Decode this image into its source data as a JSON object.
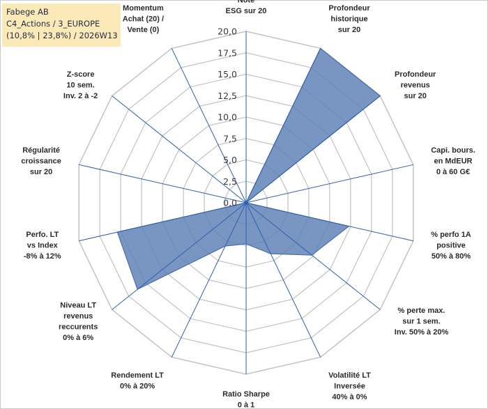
{
  "title": {
    "line1": "Fabege AB",
    "line2": "C4_Actions / 3_EUROPE",
    "line3": "(10,8% | 23,8%) / 2026W13"
  },
  "colors": {
    "fill": "#5b7fb5",
    "stroke": "#4a6fa8",
    "grid": "#c6c6c6",
    "spoke": "#2e5fb0",
    "title_bg": "#fbe9b7"
  },
  "chart_data": {
    "type": "radar",
    "rmin": 0,
    "rmax": 20,
    "ticks": [
      "0,0",
      "2,5",
      "5,0",
      "7,5",
      "10,0",
      "12,5",
      "15,0",
      "17,5",
      "20,0"
    ],
    "axes": [
      {
        "label": [
          "Note",
          "ESG sur 20"
        ],
        "value": 0
      },
      {
        "label": [
          "Profondeur",
          "historique",
          "sur 20"
        ],
        "value": 20
      },
      {
        "label": [
          "Profondeur",
          "revenus",
          "sur 20"
        ],
        "value": 20
      },
      {
        "label": [
          "Capi. bours.",
          "en MdEUR",
          "0 à 60 G€"
        ],
        "value": 0
      },
      {
        "label": [
          "% perfo 1A",
          "positive",
          "50% à 80%"
        ],
        "value": 12.3
      },
      {
        "label": [
          "% perte max.",
          "sur 1 sem.",
          "Inv. 50% à 20%"
        ],
        "value": 9.8
      },
      {
        "label": [
          "Volatilité LT",
          "Inversée",
          "40% à 0%"
        ],
        "value": 6.6
      },
      {
        "label": [
          "Ratio Sharpe",
          "0 à 1"
        ],
        "value": 4.8
      },
      {
        "label": [
          "Rendement LT",
          "0% à 20%"
        ],
        "value": 5.6
      },
      {
        "label": [
          "Niveau LT",
          "revenus",
          "reccurents",
          "0% à 6%"
        ],
        "value": 16.2
      },
      {
        "label": [
          "Perfo. LT",
          "vs Index",
          "-8% à 12%"
        ],
        "value": 15.4
      },
      {
        "label": [
          "Régularité",
          "croissance",
          "sur 20"
        ],
        "value": 0
      },
      {
        "label": [
          "Z-score",
          "10 sem.",
          "Inv. 2 à -2"
        ],
        "value": 0
      },
      {
        "label": [
          "Momentum",
          "Achat (20) /",
          "Vente (0)"
        ],
        "value": 0
      }
    ]
  }
}
